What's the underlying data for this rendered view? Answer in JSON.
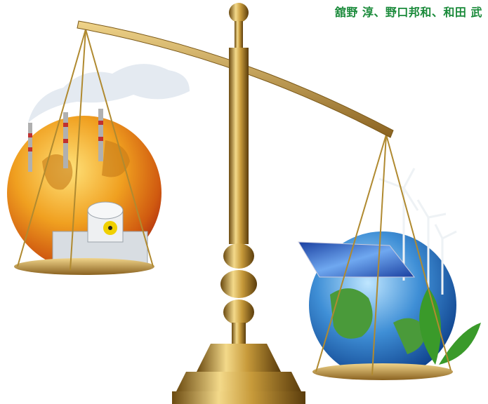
{
  "credit": "舘野 淳、野口邦和、和田 武"
}
